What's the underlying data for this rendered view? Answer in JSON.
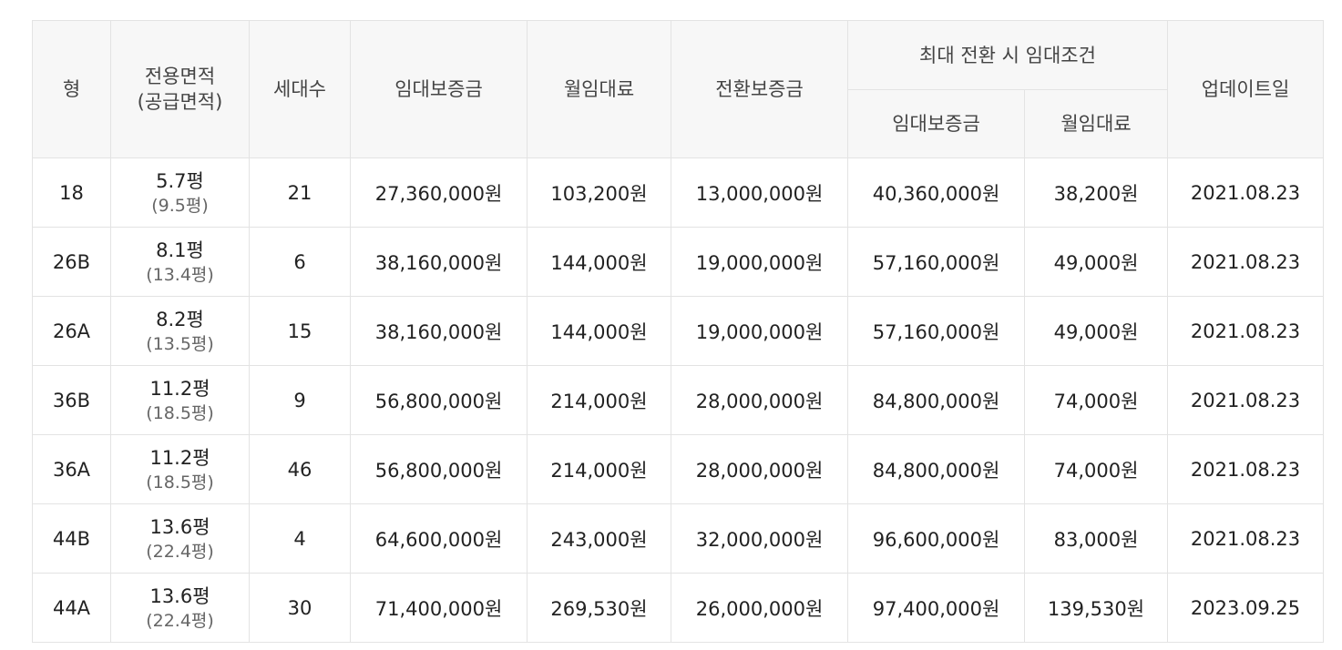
{
  "table": {
    "headers": {
      "type": "형",
      "area_line1": "전용면적",
      "area_line2": "(공급면적)",
      "households": "세대수",
      "deposit": "임대보증금",
      "monthly_rent": "월임대료",
      "conversion_deposit": "전환보증금",
      "max_conversion_group": "최대 전환 시 임대조건",
      "max_deposit": "임대보증금",
      "max_monthly_rent": "월임대료",
      "updated": "업데이트일"
    },
    "rows": [
      {
        "type": "18",
        "area": "5.7평",
        "supply_area": "(9.5평)",
        "households": "21",
        "deposit": "27,360,000원",
        "monthly_rent": "103,200원",
        "conversion_deposit": "13,000,000원",
        "max_deposit": "40,360,000원",
        "max_monthly_rent": "38,200원",
        "updated": "2021.08.23"
      },
      {
        "type": "26B",
        "area": "8.1평",
        "supply_area": "(13.4평)",
        "households": "6",
        "deposit": "38,160,000원",
        "monthly_rent": "144,000원",
        "conversion_deposit": "19,000,000원",
        "max_deposit": "57,160,000원",
        "max_monthly_rent": "49,000원",
        "updated": "2021.08.23"
      },
      {
        "type": "26A",
        "area": "8.2평",
        "supply_area": "(13.5평)",
        "households": "15",
        "deposit": "38,160,000원",
        "monthly_rent": "144,000원",
        "conversion_deposit": "19,000,000원",
        "max_deposit": "57,160,000원",
        "max_monthly_rent": "49,000원",
        "updated": "2021.08.23"
      },
      {
        "type": "36B",
        "area": "11.2평",
        "supply_area": "(18.5평)",
        "households": "9",
        "deposit": "56,800,000원",
        "monthly_rent": "214,000원",
        "conversion_deposit": "28,000,000원",
        "max_deposit": "84,800,000원",
        "max_monthly_rent": "74,000원",
        "updated": "2021.08.23"
      },
      {
        "type": "36A",
        "area": "11.2평",
        "supply_area": "(18.5평)",
        "households": "46",
        "deposit": "56,800,000원",
        "monthly_rent": "214,000원",
        "conversion_deposit": "28,000,000원",
        "max_deposit": "84,800,000원",
        "max_monthly_rent": "74,000원",
        "updated": "2021.08.23"
      },
      {
        "type": "44B",
        "area": "13.6평",
        "supply_area": "(22.4평)",
        "households": "4",
        "deposit": "64,600,000원",
        "monthly_rent": "243,000원",
        "conversion_deposit": "32,000,000원",
        "max_deposit": "96,600,000원",
        "max_monthly_rent": "83,000원",
        "updated": "2021.08.23"
      },
      {
        "type": "44A",
        "area": "13.6평",
        "supply_area": "(22.4평)",
        "households": "30",
        "deposit": "71,400,000원",
        "monthly_rent": "269,530원",
        "conversion_deposit": "26,000,000원",
        "max_deposit": "97,400,000원",
        "max_monthly_rent": "139,530원",
        "updated": "2023.09.25"
      }
    ]
  }
}
